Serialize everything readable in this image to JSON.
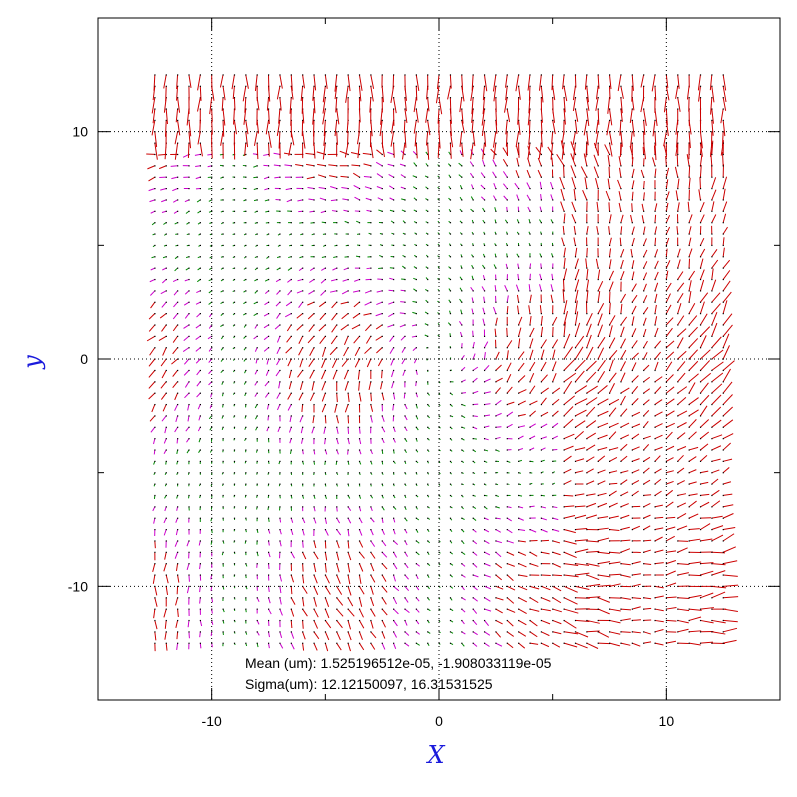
{
  "chart_data": {
    "type": "quiver",
    "title": "",
    "xlabel": "X",
    "ylabel": "y",
    "xlim": [
      -15,
      15
    ],
    "ylim": [
      -15,
      15
    ],
    "x_ticks": [
      -10,
      0,
      10
    ],
    "y_ticks": [
      -10,
      0,
      10
    ],
    "grid_lines": [
      -10,
      0,
      10
    ],
    "grid": true,
    "field": {
      "x_range": [
        -12.5,
        12.5
      ],
      "y_range": [
        -12.5,
        12.5
      ],
      "steps": 51,
      "description_colors": {
        "large": "#cc0000",
        "medium": "#cc00cc",
        "small": "#008800"
      }
    },
    "annotations": {
      "mean": "Mean (um): 1.525196512e-05, -1.908033119e-05",
      "sigma": "Sigma(um): 12.12150097, 16.31531525"
    }
  }
}
